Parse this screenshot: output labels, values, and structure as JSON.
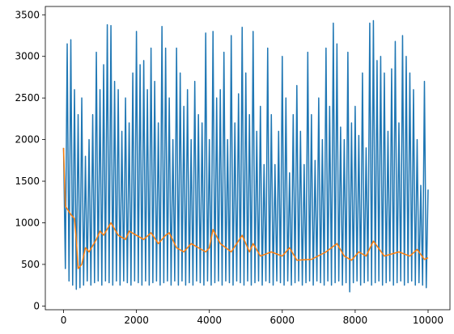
{
  "chart_data": {
    "type": "line",
    "xlim": [
      -500,
      10600
    ],
    "ylim": [
      -45,
      3600
    ],
    "xticks": [
      0,
      2000,
      4000,
      6000,
      8000,
      10000
    ],
    "yticks": [
      0,
      500,
      1000,
      1500,
      2000,
      2500,
      3000,
      3500
    ],
    "grid": false,
    "series": [
      {
        "color": "#1f77b4",
        "x": [
          0,
          50,
          100,
          150,
          200,
          250,
          300,
          350,
          400,
          450,
          500,
          550,
          600,
          650,
          700,
          750,
          800,
          850,
          900,
          950,
          1000,
          1050,
          1100,
          1150,
          1200,
          1250,
          1300,
          1350,
          1400,
          1450,
          1500,
          1550,
          1600,
          1650,
          1700,
          1750,
          1800,
          1850,
          1900,
          1950,
          2000,
          2050,
          2100,
          2150,
          2200,
          2250,
          2300,
          2350,
          2400,
          2450,
          2500,
          2550,
          2600,
          2650,
          2700,
          2750,
          2800,
          2850,
          2900,
          2950,
          3000,
          3050,
          3100,
          3150,
          3200,
          3250,
          3300,
          3350,
          3400,
          3450,
          3500,
          3550,
          3600,
          3650,
          3700,
          3750,
          3800,
          3850,
          3900,
          3950,
          4000,
          4050,
          4100,
          4150,
          4200,
          4250,
          4300,
          4350,
          4400,
          4450,
          4500,
          4550,
          4600,
          4650,
          4700,
          4750,
          4800,
          4850,
          4900,
          4950,
          5000,
          5050,
          5100,
          5150,
          5200,
          5250,
          5300,
          5350,
          5400,
          5450,
          5500,
          5550,
          5600,
          5650,
          5700,
          5750,
          5800,
          5850,
          5900,
          5950,
          6000,
          6050,
          6100,
          6150,
          6200,
          6250,
          6300,
          6350,
          6400,
          6450,
          6500,
          6550,
          6600,
          6650,
          6700,
          6750,
          6800,
          6850,
          6900,
          6950,
          7000,
          7050,
          7100,
          7150,
          7200,
          7250,
          7300,
          7350,
          7400,
          7450,
          7500,
          7550,
          7600,
          7650,
          7700,
          7750,
          7800,
          7850,
          7900,
          7950,
          8000,
          8050,
          8100,
          8150,
          8200,
          8250,
          8300,
          8350,
          8400,
          8450,
          8500,
          8550,
          8600,
          8650,
          8700,
          8750,
          8800,
          8850,
          8900,
          8950,
          9000,
          9050,
          9100,
          9150,
          9200,
          9250,
          9300,
          9350,
          9400,
          9450,
          9500,
          9550,
          9600,
          9650,
          9700,
          9750,
          9800,
          9850,
          9900,
          9950,
          10000
        ],
        "values": [
          1900,
          450,
          3150,
          300,
          3200,
          250,
          2600,
          200,
          2300,
          220,
          2500,
          250,
          1800,
          300,
          2000,
          250,
          2300,
          280,
          3050,
          300,
          2600,
          250,
          2900,
          300,
          3380,
          280,
          3370,
          250,
          2700,
          300,
          2600,
          250,
          2100,
          300,
          2500,
          280,
          2200,
          250,
          2800,
          300,
          3300,
          280,
          2900,
          250,
          2950,
          300,
          2600,
          250,
          3100,
          280,
          2700,
          300,
          2200,
          250,
          3360,
          280,
          3100,
          300,
          2500,
          250,
          2000,
          300,
          3100,
          250,
          2800,
          300,
          2400,
          250,
          2600,
          280,
          2000,
          250,
          2700,
          300,
          2300,
          280,
          2200,
          250,
          3280,
          300,
          2000,
          250,
          3300,
          280,
          2500,
          300,
          2600,
          250,
          3050,
          300,
          2000,
          280,
          3250,
          250,
          2200,
          300,
          2550,
          280,
          3350,
          250,
          2800,
          300,
          2300,
          250,
          3300,
          280,
          2100,
          300,
          2400,
          250,
          1700,
          300,
          3100,
          280,
          2300,
          250,
          1700,
          300,
          2100,
          280,
          3000,
          250,
          2500,
          300,
          1600,
          250,
          2300,
          280,
          2650,
          300,
          2100,
          250,
          1700,
          280,
          3050,
          300,
          2300,
          250,
          1750,
          300,
          2500,
          280,
          2000,
          250,
          3100,
          300,
          2400,
          250,
          3400,
          280,
          3150,
          300,
          2150,
          250,
          2000,
          280,
          3050,
          170,
          2200,
          280,
          2400,
          300,
          2050,
          250,
          2800,
          280,
          1900,
          300,
          3400,
          250,
          3430,
          280,
          2950,
          300,
          3000,
          250,
          2800,
          280,
          2100,
          300,
          2850,
          250,
          3180,
          280,
          2200,
          300,
          3250,
          250,
          3000,
          280,
          2800,
          300,
          2600,
          250,
          2000,
          280,
          1450,
          250,
          2700,
          220,
          1400
        ]
      },
      {
        "color": "#ff7f0e",
        "x": [
          0,
          50,
          200,
          300,
          350,
          400,
          500,
          600,
          700,
          900,
          1000,
          1100,
          1300,
          1500,
          1700,
          1800,
          2000,
          2200,
          2400,
          2600,
          2800,
          2900,
          3100,
          3300,
          3500,
          3700,
          3900,
          4000,
          4100,
          4300,
          4600,
          4900,
          5100,
          5200,
          5400,
          5700,
          6000,
          6200,
          6400,
          6800,
          7200,
          7500,
          7700,
          7900,
          8100,
          8300,
          8500,
          8800,
          9200,
          9500,
          9700,
          9900,
          10000
        ],
        "values": [
          1900,
          1200,
          1100,
          1050,
          800,
          450,
          500,
          700,
          650,
          800,
          900,
          850,
          1000,
          850,
          800,
          900,
          850,
          800,
          880,
          750,
          850,
          880,
          700,
          650,
          750,
          700,
          650,
          700,
          920,
          750,
          650,
          850,
          650,
          750,
          600,
          650,
          600,
          700,
          550,
          560,
          650,
          750,
          600,
          550,
          650,
          600,
          780,
          600,
          650,
          600,
          680,
          560,
          580
        ]
      }
    ]
  }
}
